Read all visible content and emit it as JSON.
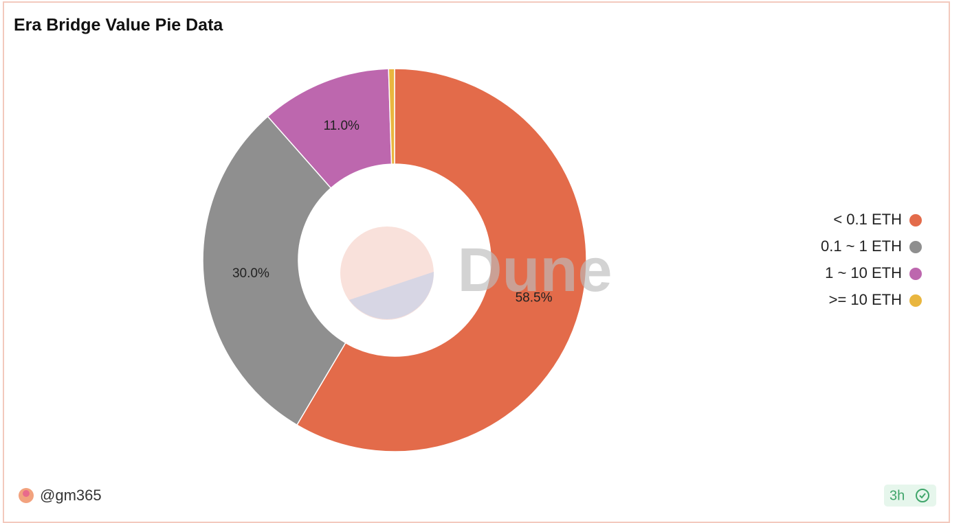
{
  "chart_data": {
    "type": "pie",
    "title": "Era Bridge Value Pie Data",
    "categories": [
      "< 0.1 ETH",
      "0.1 ~ 1 ETH",
      "1 ~ 10 ETH",
      ">= 10 ETH"
    ],
    "values": [
      58.5,
      30.0,
      11.0,
      0.5
    ],
    "value_labels": [
      "58.5%",
      "30.0%",
      "11.0%",
      null
    ],
    "colors": [
      "#e36b4a",
      "#8f8f8f",
      "#bd67ae",
      "#e9b63f"
    ],
    "donut": true,
    "legend": "right"
  },
  "watermark": "Dune",
  "footer": {
    "author": "@gm365",
    "age": "3h"
  }
}
